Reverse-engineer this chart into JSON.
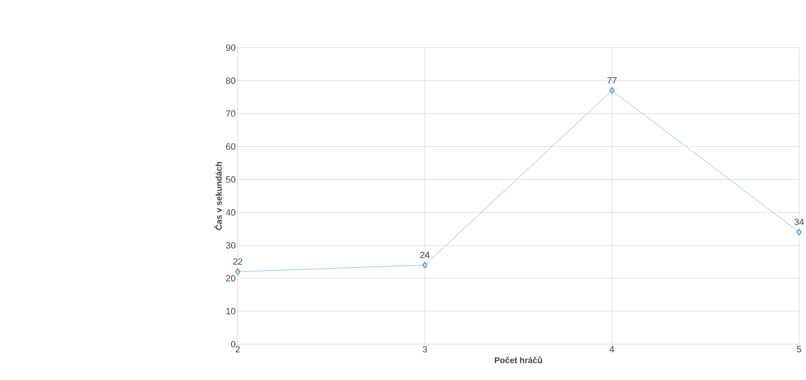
{
  "chart_data": {
    "type": "line",
    "xlabel": "Počet hráčů",
    "ylabel": "Čas v sekundách",
    "categories": [
      "2",
      "3",
      "4",
      "5"
    ],
    "series": [
      {
        "color": "#5b9bd5",
        "values": [
          22,
          24,
          77,
          34
        ]
      }
    ],
    "ylim": [
      0,
      90
    ],
    "yticks": [
      0,
      10,
      20,
      30,
      40,
      50,
      60,
      70,
      80,
      90
    ],
    "grid": true,
    "marker": "diamond",
    "data_labels": true
  }
}
